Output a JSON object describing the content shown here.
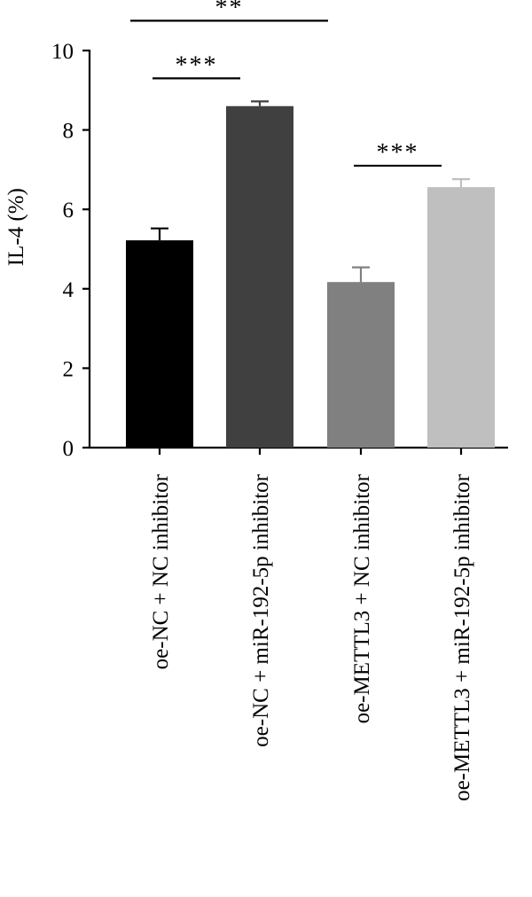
{
  "chart_data": {
    "type": "bar",
    "title": "",
    "xlabel": "",
    "ylabel": "IL-4 (%)",
    "ylim": [
      0,
      10
    ],
    "yticks": [
      "0",
      "2",
      "4",
      "6",
      "8",
      "10"
    ],
    "grid": false,
    "categories": [
      "oe-NC + NC inhibitor",
      "oe-NC + miR-192-5p inhibitor",
      "oe-METTL3 + NC inhibitor",
      "oe-METTL3 + miR-192-5p inhibitor"
    ],
    "values": [
      5.22,
      8.6,
      4.17,
      6.56
    ],
    "errors": [
      0.3,
      0.12,
      0.37,
      0.2
    ],
    "colors": [
      "#000000",
      "#404040",
      "#808080",
      "#bfbfbf"
    ],
    "significance": [
      {
        "from": 0,
        "to": 1,
        "label": "***",
        "y": 9.3
      },
      {
        "from": 2,
        "to": 3,
        "label": "***",
        "y": 7.1
      },
      {
        "from": 0,
        "to": 2,
        "label": "**",
        "y": 10.75
      }
    ]
  }
}
